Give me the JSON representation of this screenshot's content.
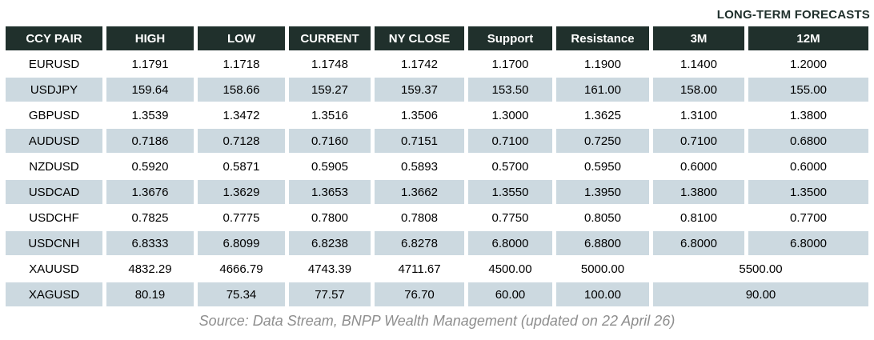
{
  "header": {
    "long_term_label": "LONG-TERM FORECASTS"
  },
  "footer": {
    "source": "Source: Data Stream, BNPP Wealth Management (updated on 22 April 26)"
  },
  "colors": {
    "header_bg": "#20302c",
    "header_text": "#ffffff",
    "label_text": "#20302c",
    "row_shaded": "#ccd9e0",
    "body_text": "#000000",
    "source_text": "#8e8e8e"
  },
  "chart_data": {
    "type": "table",
    "title": "LONG-TERM FORECASTS",
    "columns": [
      "CCY PAIR",
      "HIGH",
      "LOW",
      "CURRENT",
      "NY CLOSE",
      "Support",
      "Resistance",
      "3M",
      "12M"
    ],
    "rows": [
      {
        "pair": "EURUSD",
        "values": [
          "1.1791",
          "1.1718",
          "1.1748",
          "1.1742",
          "1.1700",
          "1.1900",
          "1.1400",
          "1.2000"
        ]
      },
      {
        "pair": "USDJPY",
        "values": [
          "159.64",
          "158.66",
          "159.27",
          "159.37",
          "153.50",
          "161.00",
          "158.00",
          "155.00"
        ]
      },
      {
        "pair": "GBPUSD",
        "values": [
          "1.3539",
          "1.3472",
          "1.3516",
          "1.3506",
          "1.3000",
          "1.3625",
          "1.3100",
          "1.3800"
        ]
      },
      {
        "pair": "AUDUSD",
        "values": [
          "0.7186",
          "0.7128",
          "0.7160",
          "0.7151",
          "0.7100",
          "0.7250",
          "0.7100",
          "0.6800"
        ]
      },
      {
        "pair": "NZDUSD",
        "values": [
          "0.5920",
          "0.5871",
          "0.5905",
          "0.5893",
          "0.5700",
          "0.5950",
          "0.6000",
          "0.6000"
        ]
      },
      {
        "pair": "USDCAD",
        "values": [
          "1.3676",
          "1.3629",
          "1.3653",
          "1.3662",
          "1.3550",
          "1.3950",
          "1.3800",
          "1.3500"
        ]
      },
      {
        "pair": "USDCHF",
        "values": [
          "0.7825",
          "0.7775",
          "0.7800",
          "0.7808",
          "0.7750",
          "0.8050",
          "0.8100",
          "0.7700"
        ]
      },
      {
        "pair": "USDCNH",
        "values": [
          "6.8333",
          "6.8099",
          "6.8238",
          "6.8278",
          "6.8000",
          "6.8800",
          "6.8000",
          "6.8000"
        ]
      },
      {
        "pair": "XAUUSD",
        "values": [
          "4832.29",
          "4666.79",
          "4743.39",
          "4711.67",
          "4500.00",
          "5000.00"
        ],
        "merged_3m_12m": "5500.00"
      },
      {
        "pair": "XAGUSD",
        "values": [
          "80.19",
          "75.34",
          "77.57",
          "76.70",
          "60.00",
          "100.00"
        ],
        "merged_3m_12m": "90.00"
      }
    ]
  }
}
